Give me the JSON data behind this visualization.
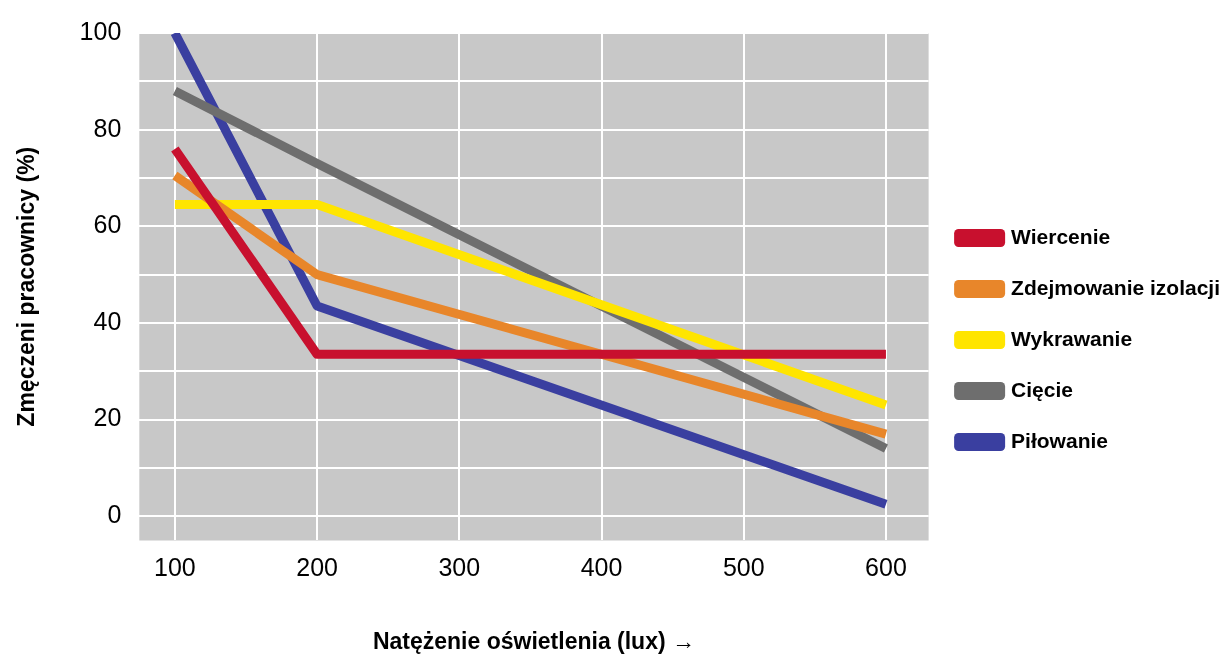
{
  "chart_data": {
    "type": "line",
    "xlabel": "Natężenie oświetlenia (lux) →",
    "ylabel": "Zmęczeni pracownicy (%)",
    "xlim": [
      75,
      630
    ],
    "xticks": [
      100,
      200,
      300,
      400,
      500,
      600
    ],
    "ylim": [
      -5,
      100
    ],
    "yticks": [
      0,
      {
        "value": 10,
        "label": null
      },
      20,
      {
        "value": 30,
        "label": null
      },
      40,
      {
        "value": 50,
        "label": null
      },
      60,
      {
        "value": 70,
        "label": null
      },
      80,
      {
        "value": 90,
        "label": null
      },
      100
    ],
    "grid": true,
    "legend": "right",
    "marker": "none",
    "line_style": "solid",
    "series": [
      {
        "name": "Wiercenie",
        "color": "#c8102e",
        "x": [
          100,
          200,
          600
        ],
        "values": [
          76,
          33.5,
          33.5
        ]
      },
      {
        "name": "Zdejmowanie izolacji",
        "color": "#e8862a",
        "x": [
          100,
          200,
          600
        ],
        "values": [
          70.5,
          50,
          17
        ]
      },
      {
        "name": "Wykrawanie",
        "color": "#ffe500",
        "x": [
          100,
          200,
          600
        ],
        "values": [
          64.5,
          64.5,
          23
        ]
      },
      {
        "name": "Cięcie",
        "color": "#6e6e6e",
        "x": [
          100,
          200,
          600
        ],
        "values": [
          88,
          73,
          14
        ]
      },
      {
        "name": "Piłowanie",
        "color": "#3a3fa0",
        "x": [
          100,
          200,
          600
        ],
        "values": [
          100,
          43.5,
          2.5
        ]
      }
    ]
  }
}
